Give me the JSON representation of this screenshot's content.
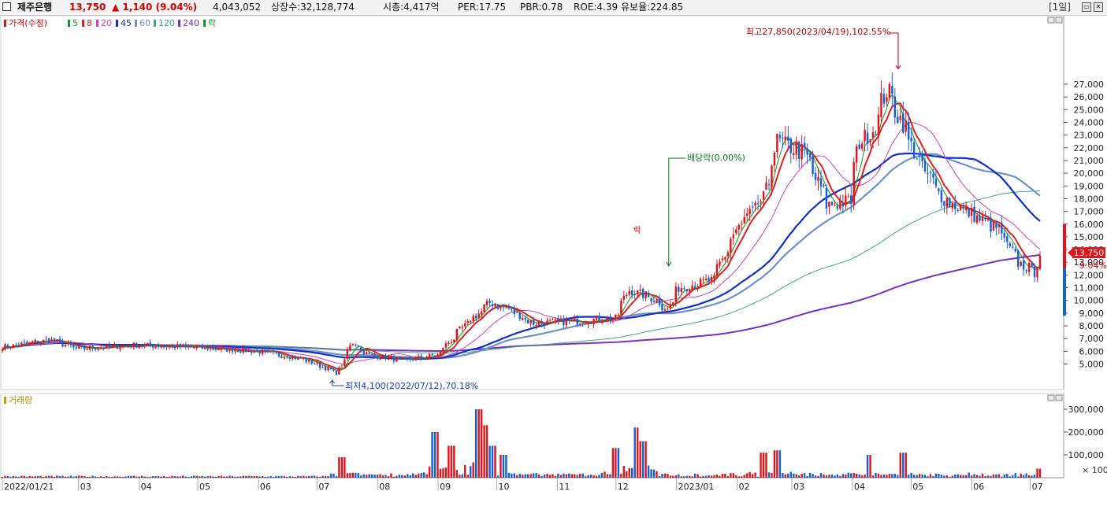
{
  "header": {
    "stock_name": "제주은행",
    "price": "13,750",
    "change": "▲ 1,140 (9.04%)",
    "volume": "4,043,052",
    "shares": "상장수:32,128,774",
    "market_cap": "시총:4,417억",
    "per": "PER:17.75",
    "pbr": "PBR:0.78",
    "roe": "ROE:4.39",
    "float_ratio": "유보율:224.85",
    "period": "[1일]"
  },
  "legend": {
    "price_label": "가격(수정)",
    "ma": [
      "5",
      "8",
      "20",
      "45",
      "60",
      "120",
      "240"
    ],
    "ex_label": "락"
  },
  "colors": {
    "up": "#e0151b",
    "down": "#1560d8",
    "ma5": "#0a9c1e",
    "ma8": "#e02020",
    "ma20": "#d040c0",
    "ma45": "#1030c8",
    "ma60": "#6b93c9",
    "ma120": "#3aa88a",
    "ma240": "#7a2fc0"
  },
  "annotations": {
    "high": "최고27,850(2023/04/19),102.55%",
    "low": "최저4,100(2022/07/12),70.18%",
    "dividend": "배당락(0.00%)",
    "ex_mark": "락"
  },
  "price_tag": {
    "value": "13,750",
    "pct": "9.04%"
  },
  "volume_panel": {
    "label": "거래량",
    "unit": "× 100"
  },
  "chart_data": {
    "type": "candlestick",
    "y_axis_price": {
      "ticks": [
        5000,
        6000,
        7000,
        8000,
        9000,
        10000,
        11000,
        12000,
        13000,
        14000,
        15000,
        16000,
        17000,
        18000,
        19000,
        20000,
        21000,
        22000,
        23000,
        24000,
        25000,
        26000,
        27000
      ],
      "tick_labels": [
        "5,000",
        "6,000",
        "7,000",
        "8,000",
        "9,000",
        "10,000",
        "11,000",
        "12,000",
        "13,000",
        "14,000",
        "15,000",
        "16,000",
        "17,000",
        "18,000",
        "19,000",
        "20,000",
        "21,000",
        "22,000",
        "23,000",
        "24,000",
        "25,000",
        "26,000",
        "27,000"
      ]
    },
    "y_axis_volume": {
      "ticks": [
        100000,
        200000,
        300000
      ],
      "tick_labels": [
        "100,000",
        "200,000",
        "300,000"
      ]
    },
    "x_labels": [
      "2022/01/21",
      "03",
      "04",
      "05",
      "06",
      "07",
      "08",
      "09",
      "10",
      "11",
      "12",
      "2023/01",
      "02",
      "03",
      "04",
      "05",
      "06",
      "07"
    ],
    "price_anchors": [
      [
        "2022/01/21",
        6300
      ],
      [
        "2022/02/15",
        6900
      ],
      [
        "2022/03/01",
        6200
      ],
      [
        "2022/04/01",
        6500
      ],
      [
        "2022/05/01",
        6300
      ],
      [
        "2022/06/01",
        6000
      ],
      [
        "2022/06/25",
        5400
      ],
      [
        "2022/07/12",
        4300
      ],
      [
        "2022/07/20",
        6700
      ],
      [
        "2022/07/28",
        5700
      ],
      [
        "2022/08/15",
        5300
      ],
      [
        "2022/09/01",
        5700
      ],
      [
        "2022/09/15",
        8000
      ],
      [
        "2022/09/28",
        9800
      ],
      [
        "2022/10/08",
        9300
      ],
      [
        "2022/10/20",
        8200
      ],
      [
        "2022/11/01",
        8300
      ],
      [
        "2022/11/15",
        8400
      ],
      [
        "2022/12/01",
        8600
      ],
      [
        "2022/12/08",
        10800
      ],
      [
        "2022/12/20",
        10200
      ],
      [
        "2022/12/28",
        9300
      ],
      [
        "2023/01/03",
        11000
      ],
      [
        "2023/01/20",
        11600
      ],
      [
        "2023/02/01",
        15500
      ],
      [
        "2023/02/15",
        18000
      ],
      [
        "2023/02/22",
        22500
      ],
      [
        "2023/03/08",
        21600
      ],
      [
        "2023/03/20",
        17500
      ],
      [
        "2023/03/31",
        17800
      ],
      [
        "2023/04/05",
        22500
      ],
      [
        "2023/04/12",
        23400
      ],
      [
        "2023/04/19",
        26500
      ],
      [
        "2023/04/27",
        24000
      ],
      [
        "2023/05/05",
        21000
      ],
      [
        "2023/05/18",
        18000
      ],
      [
        "2023/06/01",
        16800
      ],
      [
        "2023/06/15",
        15600
      ],
      [
        "2023/06/25",
        13000
      ],
      [
        "2023/07/04",
        12200
      ],
      [
        "2023/07/06",
        13750
      ]
    ],
    "highlights": {
      "high": {
        "date": "2023/04/19",
        "value": 27850
      },
      "low": {
        "date": "2022/07/12",
        "value": 4100
      },
      "dividend_ex": {
        "date": "2022/12/28"
      }
    },
    "volume_spikes": [
      [
        "2022/07/14",
        90000
      ],
      [
        "2022/08/31",
        200000
      ],
      [
        "2022/09/08",
        140000
      ],
      [
        "2022/09/22",
        300000
      ],
      [
        "2022/09/26",
        230000
      ],
      [
        "2022/09/29",
        140000
      ],
      [
        "2022/10/05",
        100000
      ],
      [
        "2022/12/01",
        130000
      ],
      [
        "2022/12/12",
        220000
      ],
      [
        "2022/12/15",
        160000
      ],
      [
        "2023/02/15",
        110000
      ],
      [
        "2023/02/22",
        120000
      ],
      [
        "2023/04/10",
        100000
      ],
      [
        "2023/04/27",
        110000
      ],
      [
        "2023/07/06",
        40000
      ]
    ]
  }
}
